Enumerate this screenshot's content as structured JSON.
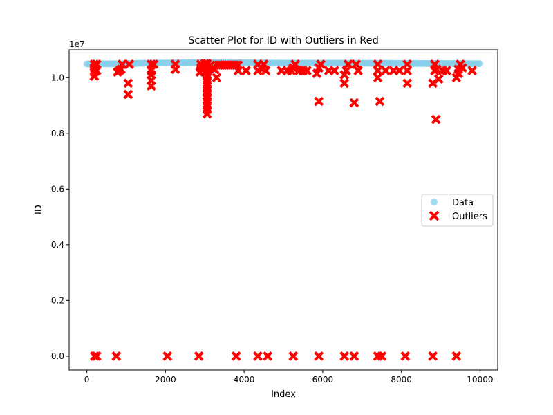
{
  "chart_data": {
    "type": "scatter",
    "title": "Scatter Plot for ID with Outliers in Red",
    "xlabel": "Index",
    "ylabel": "ID",
    "y_offset_label": "1e7",
    "y_scale": 10000000,
    "xlim": [
      -450,
      10450
    ],
    "ylim": [
      -500000,
      11000000
    ],
    "x_ticks": [
      0,
      2000,
      4000,
      6000,
      8000,
      10000
    ],
    "x_tick_labels": [
      "0",
      "2000",
      "4000",
      "6000",
      "8000",
      "10000"
    ],
    "y_ticks": [
      0,
      2000000,
      4000000,
      6000000,
      8000000,
      10000000
    ],
    "y_tick_labels": [
      "0.0",
      "0.2",
      "0.4",
      "0.6",
      "0.8",
      "1.0"
    ],
    "legend_position": "center-right",
    "grid": false,
    "series": [
      {
        "name": "Data",
        "marker": "circle",
        "color": "#87ceeb",
        "alpha": 0.7,
        "x_range": [
          0,
          10000
        ],
        "values": [
          [
            0,
            10490000
          ],
          [
            1000,
            10500000
          ],
          [
            1500,
            10520000
          ],
          [
            2500,
            10530000
          ],
          [
            3000,
            10540000
          ],
          [
            4000,
            10530000
          ],
          [
            5000,
            10520000
          ],
          [
            6000,
            10520000
          ],
          [
            7000,
            10515000
          ],
          [
            8000,
            10510000
          ],
          [
            9000,
            10505000
          ],
          [
            10000,
            10500000
          ]
        ]
      },
      {
        "name": "Outliers",
        "marker": "x",
        "color": "#ff0000",
        "points": [
          [
            190,
            10050000
          ],
          [
            190,
            10200000
          ],
          [
            190,
            10350000
          ],
          [
            190,
            10480000
          ],
          [
            250,
            10250000
          ],
          [
            250,
            10480000
          ],
          [
            780,
            10200000
          ],
          [
            830,
            10250000
          ],
          [
            870,
            10300000
          ],
          [
            900,
            10480000
          ],
          [
            1050,
            9400000
          ],
          [
            1050,
            9800000
          ],
          [
            1080,
            10480000
          ],
          [
            1640,
            9700000
          ],
          [
            1640,
            9900000
          ],
          [
            1640,
            10100000
          ],
          [
            1640,
            10250000
          ],
          [
            1640,
            10480000
          ],
          [
            1700,
            10480000
          ],
          [
            2250,
            10300000
          ],
          [
            2250,
            10480000
          ],
          [
            2880,
            10200000
          ],
          [
            2900,
            10350000
          ],
          [
            2900,
            10480000
          ],
          [
            3000,
            10200000
          ],
          [
            3000,
            10500000
          ],
          [
            3050,
            10400000
          ],
          [
            3060,
            8700000
          ],
          [
            3060,
            8850000
          ],
          [
            3060,
            9000000
          ],
          [
            3060,
            9150000
          ],
          [
            3060,
            9300000
          ],
          [
            3060,
            9450000
          ],
          [
            3060,
            9600000
          ],
          [
            3060,
            9750000
          ],
          [
            3060,
            9900000
          ],
          [
            3060,
            10050000
          ],
          [
            3060,
            10200000
          ],
          [
            3060,
            10350000
          ],
          [
            3060,
            10500000
          ],
          [
            3100,
            10300000
          ],
          [
            3150,
            10450000
          ],
          [
            3200,
            10350000
          ],
          [
            3250,
            10300000
          ],
          [
            3300,
            10000000
          ],
          [
            3350,
            10450000
          ],
          [
            3400,
            10450000
          ],
          [
            3450,
            10450000
          ],
          [
            3500,
            10450000
          ],
          [
            3550,
            10450000
          ],
          [
            3600,
            10450000
          ],
          [
            3650,
            10450000
          ],
          [
            3700,
            10450000
          ],
          [
            3750,
            10450000
          ],
          [
            3800,
            10450000
          ],
          [
            3850,
            10250000
          ],
          [
            3850,
            10450000
          ],
          [
            4050,
            10250000
          ],
          [
            4350,
            10250000
          ],
          [
            4350,
            10480000
          ],
          [
            4450,
            10300000
          ],
          [
            4500,
            10480000
          ],
          [
            4550,
            10250000
          ],
          [
            4950,
            10250000
          ],
          [
            5100,
            10250000
          ],
          [
            5200,
            10250000
          ],
          [
            5250,
            10350000
          ],
          [
            5300,
            10480000
          ],
          [
            5400,
            10250000
          ],
          [
            5500,
            10250000
          ],
          [
            5600,
            10250000
          ],
          [
            5850,
            10150000
          ],
          [
            5900,
            10350000
          ],
          [
            5900,
            9150000
          ],
          [
            5950,
            10480000
          ],
          [
            6150,
            10250000
          ],
          [
            6300,
            10250000
          ],
          [
            6550,
            9800000
          ],
          [
            6550,
            10100000
          ],
          [
            6600,
            10250000
          ],
          [
            6650,
            10480000
          ],
          [
            6800,
            9100000
          ],
          [
            6850,
            10480000
          ],
          [
            6900,
            10250000
          ],
          [
            7400,
            10000000
          ],
          [
            7400,
            10250000
          ],
          [
            7400,
            10480000
          ],
          [
            7450,
            9150000
          ],
          [
            7600,
            10250000
          ],
          [
            7800,
            10250000
          ],
          [
            7950,
            10250000
          ],
          [
            8150,
            9800000
          ],
          [
            8150,
            10250000
          ],
          [
            8150,
            10480000
          ],
          [
            8800,
            9800000
          ],
          [
            8850,
            10250000
          ],
          [
            8850,
            10480000
          ],
          [
            8880,
            8500000
          ],
          [
            8900,
            10300000
          ],
          [
            8950,
            9950000
          ],
          [
            9050,
            10250000
          ],
          [
            9150,
            10250000
          ],
          [
            9400,
            10000000
          ],
          [
            9450,
            10150000
          ],
          [
            9450,
            10300000
          ],
          [
            9500,
            10480000
          ],
          [
            9550,
            10350000
          ],
          [
            9800,
            10250000
          ],
          [
            200,
            0
          ],
          [
            250,
            0
          ],
          [
            750,
            0
          ],
          [
            2050,
            0
          ],
          [
            2850,
            0
          ],
          [
            3800,
            0
          ],
          [
            4350,
            0
          ],
          [
            4600,
            0
          ],
          [
            5250,
            0
          ],
          [
            5900,
            0
          ],
          [
            6550,
            0
          ],
          [
            6800,
            0
          ],
          [
            7400,
            0
          ],
          [
            7500,
            0
          ],
          [
            8100,
            0
          ],
          [
            8800,
            0
          ],
          [
            9400,
            0
          ]
        ]
      }
    ]
  }
}
